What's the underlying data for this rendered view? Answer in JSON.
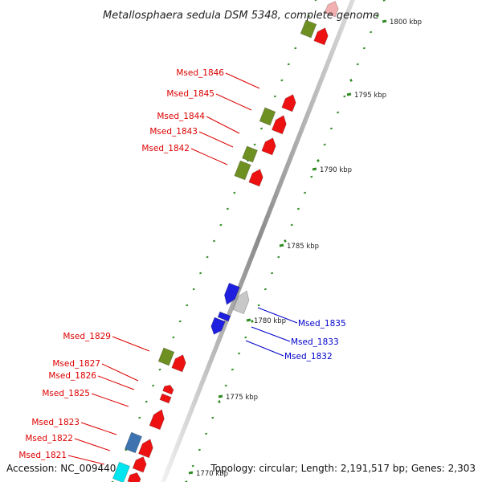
{
  "title": "Metallosphaera sedula DSM 5348, complete genome",
  "footer": {
    "accession": "Accession: NC_009440",
    "summary": "Topology: circular; Length: 2,191,517 bp; Genes: 2,303"
  },
  "colors": {
    "red_gene": "#ee1111",
    "green_gene": "#6e8f22",
    "blue_gene": "#1f1fe0",
    "steel_gene": "#3d73b0",
    "gray_gene": "#c8c8c8",
    "cyan_gene": "#00e5ef",
    "tick_green": "#2e8b22",
    "red_label": "#dd0000",
    "blue_label": "#0000cc"
  },
  "ticks": [
    {
      "label": "1800 kbp"
    },
    {
      "label": "1795 kbp"
    },
    {
      "label": "1790 kbp"
    },
    {
      "label": "1785 kbp"
    },
    {
      "label": "1780 kbp"
    },
    {
      "label": "1775 kbp"
    },
    {
      "label": "1770 kbp"
    }
  ],
  "gene_labels_left": [
    {
      "label": "Msed_1846"
    },
    {
      "label": "Msed_1845"
    },
    {
      "label": "Msed_1844"
    },
    {
      "label": "Msed_1843"
    },
    {
      "label": "Msed_1842"
    },
    {
      "label": "Msed_1829"
    },
    {
      "label": "Msed_1827"
    },
    {
      "label": "Msed_1826"
    },
    {
      "label": "Msed_1825"
    },
    {
      "label": "Msed_1823"
    },
    {
      "label": "Msed_1822"
    },
    {
      "label": "Msed_1821"
    }
  ],
  "gene_labels_right": [
    {
      "label": "Msed_1835"
    },
    {
      "label": "Msed_1833"
    },
    {
      "label": "Msed_1832"
    }
  ]
}
